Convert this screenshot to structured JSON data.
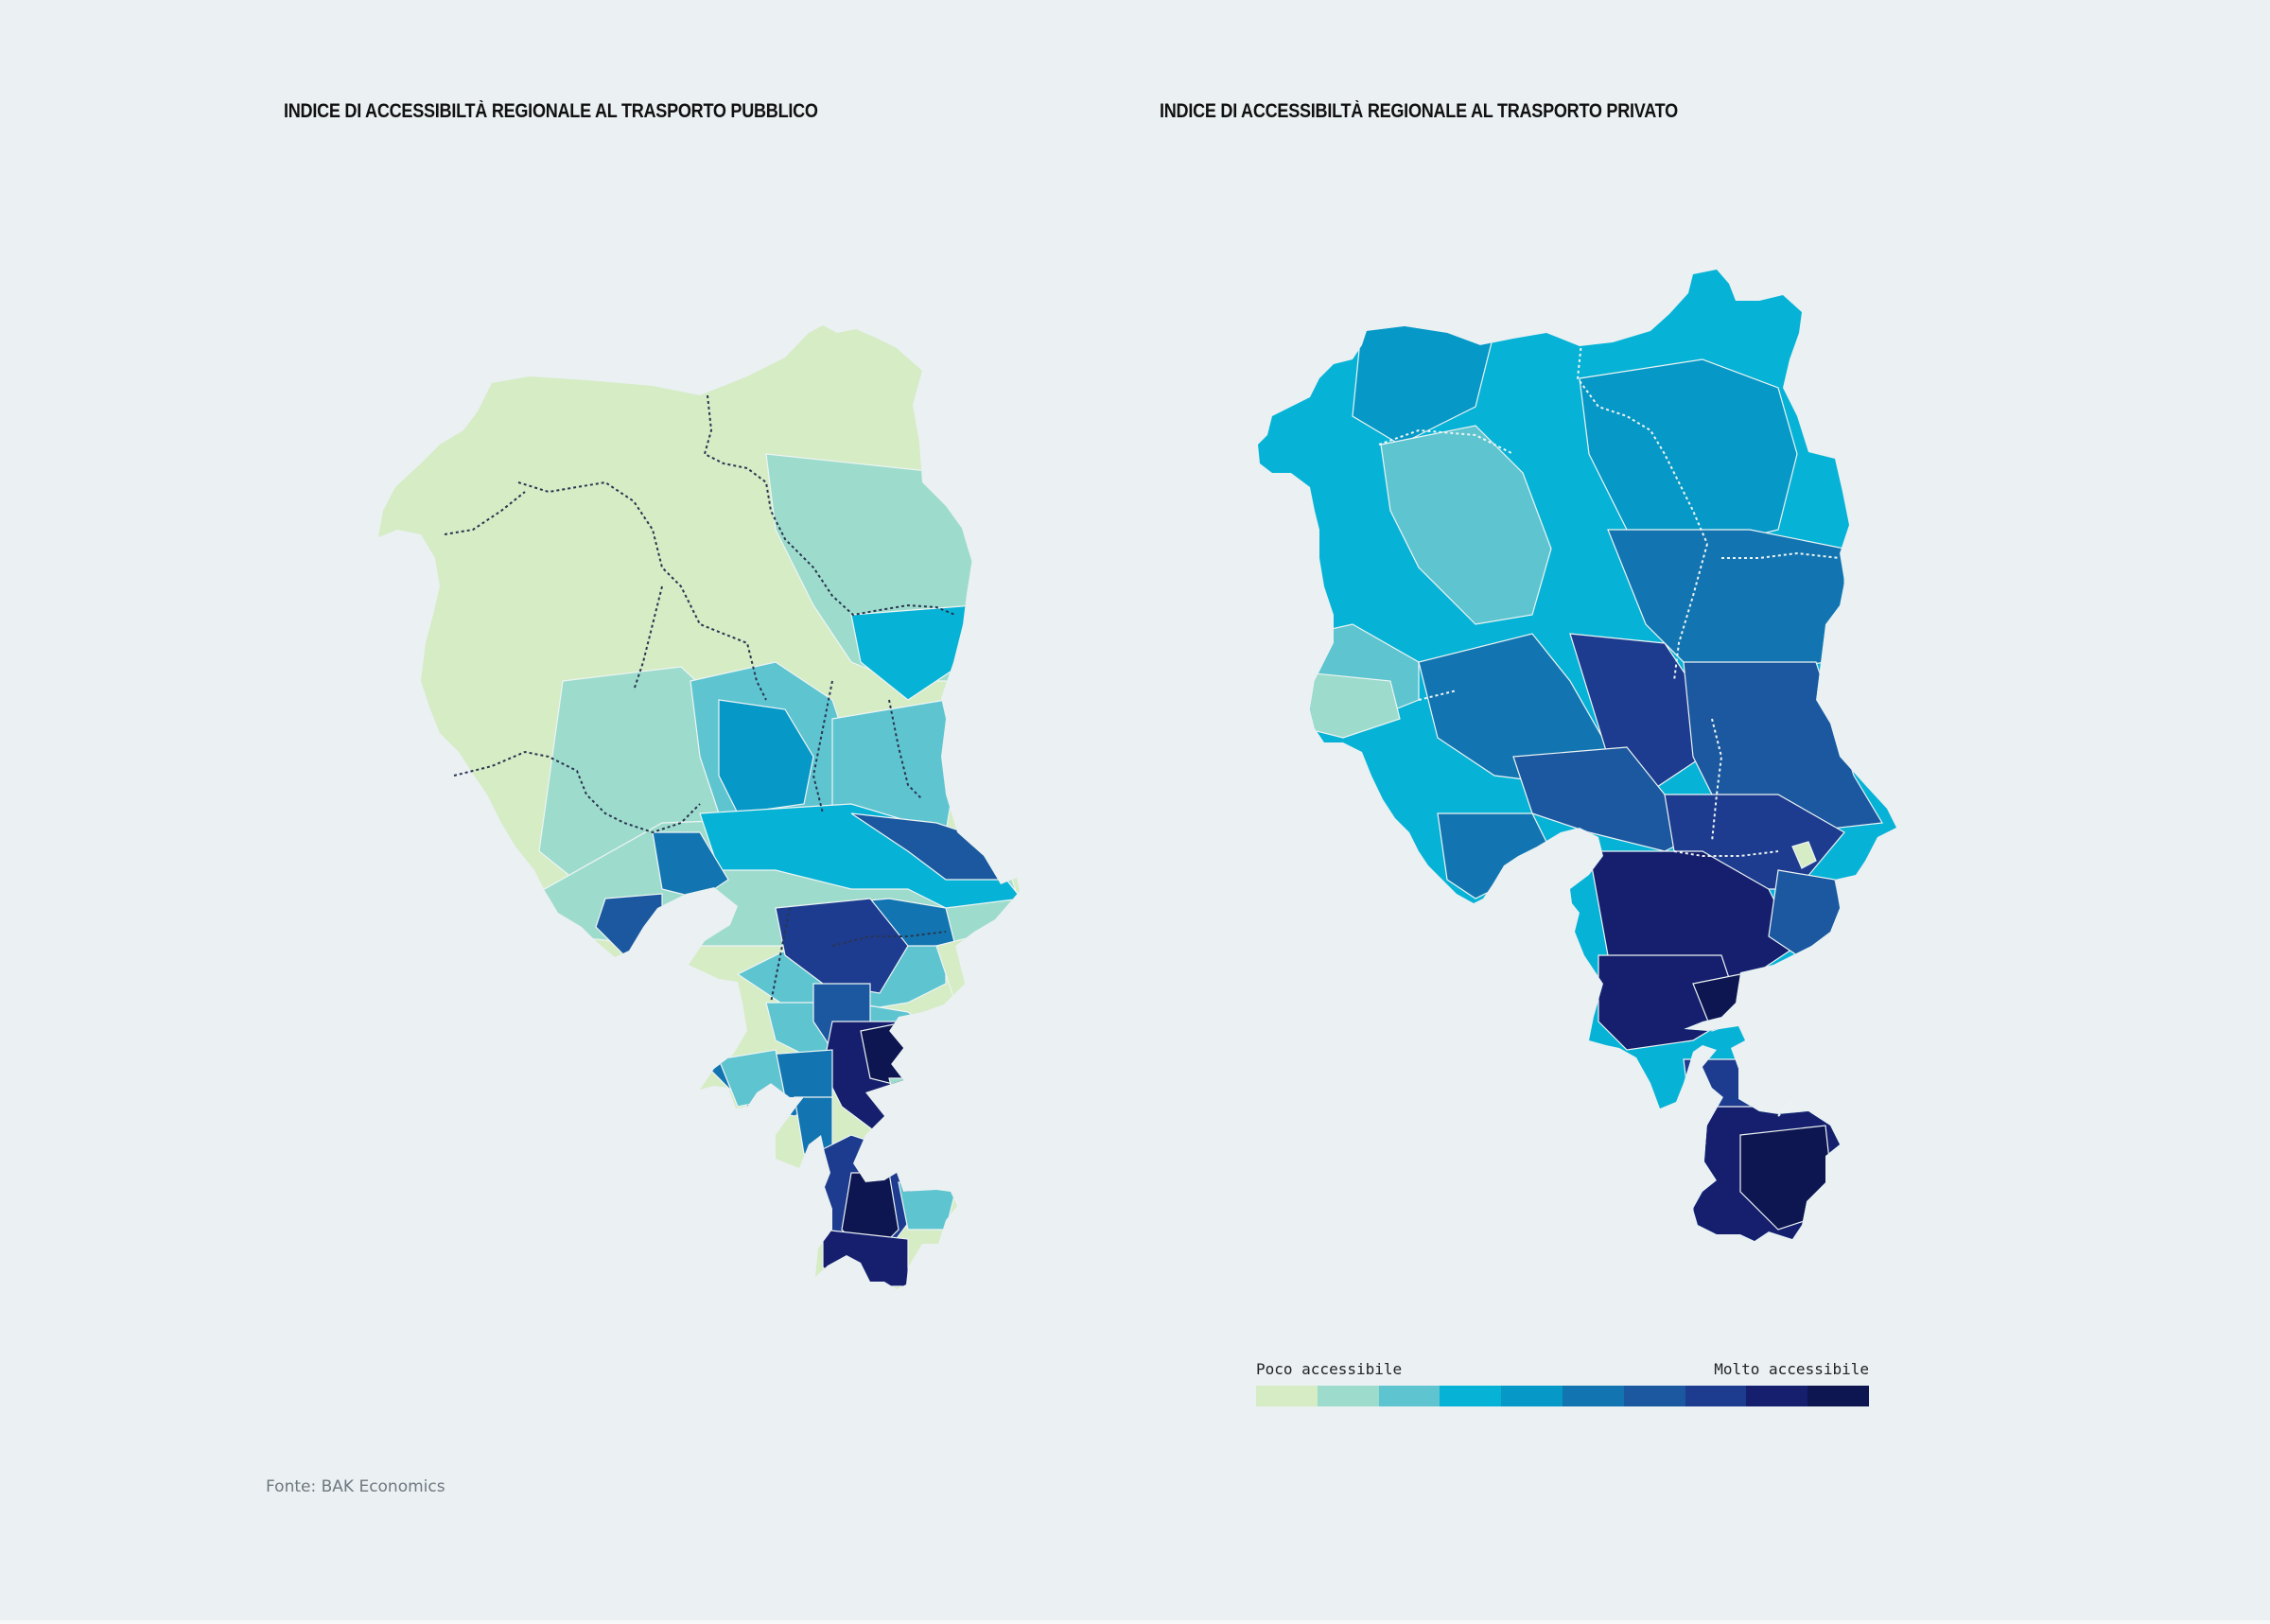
{
  "maps": {
    "public": {
      "title": "INDICE DI ACCESSIBILTÀ REGIONALE AL TRASPORTO PUBBLICO"
    },
    "private": {
      "title": "INDICE DI ACCESSIBILTÀ REGIONALE AL TRASPORTO PRIVATO"
    }
  },
  "legend": {
    "low_label": "Poco accessibile",
    "high_label": "Molto accessibile",
    "colors": [
      "#d5ecc5",
      "#9ddccc",
      "#5ec5d0",
      "#06b3d6",
      "#0698c7",
      "#1275b1",
      "#1b58a0",
      "#1d3c8f",
      "#151f6e",
      "#0d1650"
    ]
  },
  "source": "Fonte: BAK Economics",
  "colors": {
    "background": "#ebf0f3",
    "region_border": "#eef4f4",
    "district_border": "#2a3550"
  }
}
